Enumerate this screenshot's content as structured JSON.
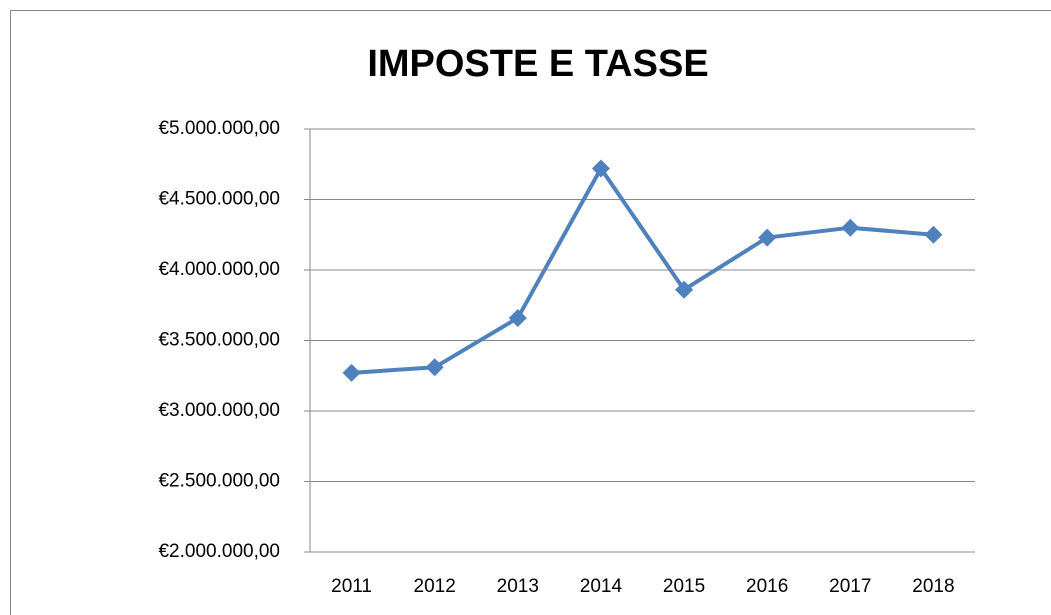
{
  "chart_data": {
    "type": "line",
    "title": "IMPOSTE E TASSE",
    "categories": [
      "2011",
      "2012",
      "2013",
      "2014",
      "2015",
      "2016",
      "2017",
      "2018"
    ],
    "series": [
      {
        "name": "IMPOSTE E TASSE",
        "color": "#4f81bd",
        "values": [
          3270000,
          3310000,
          3660000,
          4720000,
          3860000,
          4230000,
          4300000,
          4250000
        ]
      }
    ],
    "ylim": [
      2000000,
      5000000
    ],
    "yticks": [
      {
        "value": 2000000,
        "label": "€2.000.000,00"
      },
      {
        "value": 2500000,
        "label": "€2.500.000,00"
      },
      {
        "value": 3000000,
        "label": "€3.000.000,00"
      },
      {
        "value": 3500000,
        "label": "€3.500.000,00"
      },
      {
        "value": 4000000,
        "label": "€4.000.000,00"
      },
      {
        "value": 4500000,
        "label": "€4.500.000,00"
      },
      {
        "value": 5000000,
        "label": "€5.000.000,00"
      }
    ],
    "grid": true
  }
}
